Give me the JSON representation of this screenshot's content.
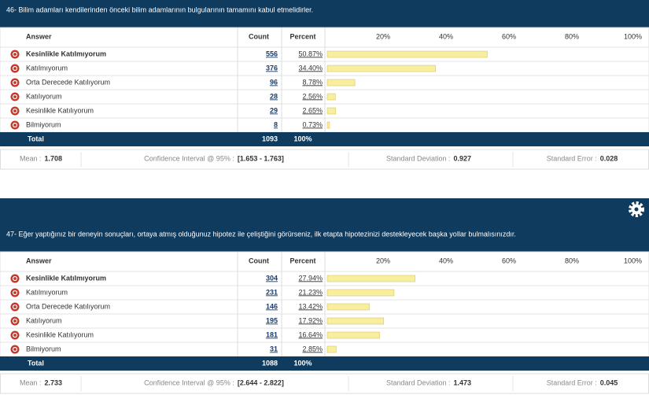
{
  "columns": [
    "Answer",
    "Count",
    "Percent"
  ],
  "scale": {
    "xlim": [
      0,
      100
    ],
    "ticks": [
      {
        "value": 20,
        "label": "20%"
      },
      {
        "value": 40,
        "label": "40%"
      },
      {
        "value": 60,
        "label": "60%"
      },
      {
        "value": 80,
        "label": "80%"
      },
      {
        "value": 100,
        "label": "100%"
      }
    ]
  },
  "questions": [
    {
      "title": "46- Bilim adamları kendilerinden önceki bilim adamlarının bulgularının tamamını kabul etmelidirler.",
      "rows": [
        {
          "answer": "Kesinlikle Katılmıyorum",
          "count": 556,
          "percent": 50.87,
          "percent_label": "50.87%"
        },
        {
          "answer": "Katılmıyorum",
          "count": 376,
          "percent": 34.4,
          "percent_label": "34.40%"
        },
        {
          "answer": "Orta Derecede Katılıyorum",
          "count": 96,
          "percent": 8.78,
          "percent_label": "8.78%"
        },
        {
          "answer": "Katılıyorum",
          "count": 28,
          "percent": 2.56,
          "percent_label": "2.56%"
        },
        {
          "answer": "Kesinlikle Katılıyorum",
          "count": 29,
          "percent": 2.65,
          "percent_label": "2.65%"
        },
        {
          "answer": "Bilmiyorum",
          "count": 8,
          "percent": 0.73,
          "percent_label": "0.73%"
        }
      ],
      "total": {
        "label": "Total",
        "count": 1093,
        "percent": "100%"
      },
      "stats": [
        {
          "label": "Mean :",
          "value": "1.708"
        },
        {
          "label": "Confidence Interval @ 95% :",
          "value": "[1.653 - 1.763]"
        },
        {
          "label": "Standard Deviation :",
          "value": "0.927"
        },
        {
          "label": "Standard Error :",
          "value": "0.028"
        }
      ]
    },
    {
      "title": "47- Eğer yaptığınız bir deneyin sonuçları, ortaya atmış olduğunuz hipotez ile çeliştiğini görürseniz, ilk etapta hipotezinizi destekleyecek başka yollar bulmalısınızdır.",
      "rows": [
        {
          "answer": "Kesinlikle Katılmıyorum",
          "count": 304,
          "percent": 27.94,
          "percent_label": "27.94%"
        },
        {
          "answer": "Katılmıyorum",
          "count": 231,
          "percent": 21.23,
          "percent_label": "21.23%"
        },
        {
          "answer": "Orta Derecede Katılıyorum",
          "count": 146,
          "percent": 13.42,
          "percent_label": "13.42%"
        },
        {
          "answer": "Katılıyorum",
          "count": 195,
          "percent": 17.92,
          "percent_label": "17.92%"
        },
        {
          "answer": "Kesinlikle Katılıyorum",
          "count": 181,
          "percent": 16.64,
          "percent_label": "16.64%"
        },
        {
          "answer": "Bilmiyorum",
          "count": 31,
          "percent": 2.85,
          "percent_label": "2.85%"
        }
      ],
      "total": {
        "label": "Total",
        "count": 1088,
        "percent": "100%"
      },
      "stats": [
        {
          "label": "Mean :",
          "value": "2.733"
        },
        {
          "label": "Confidence Interval @ 95% :",
          "value": "[2.644 - 2.822]"
        },
        {
          "label": "Standard Deviation :",
          "value": "1.473"
        },
        {
          "label": "Standard Error :",
          "value": "0.045"
        }
      ]
    }
  ]
}
